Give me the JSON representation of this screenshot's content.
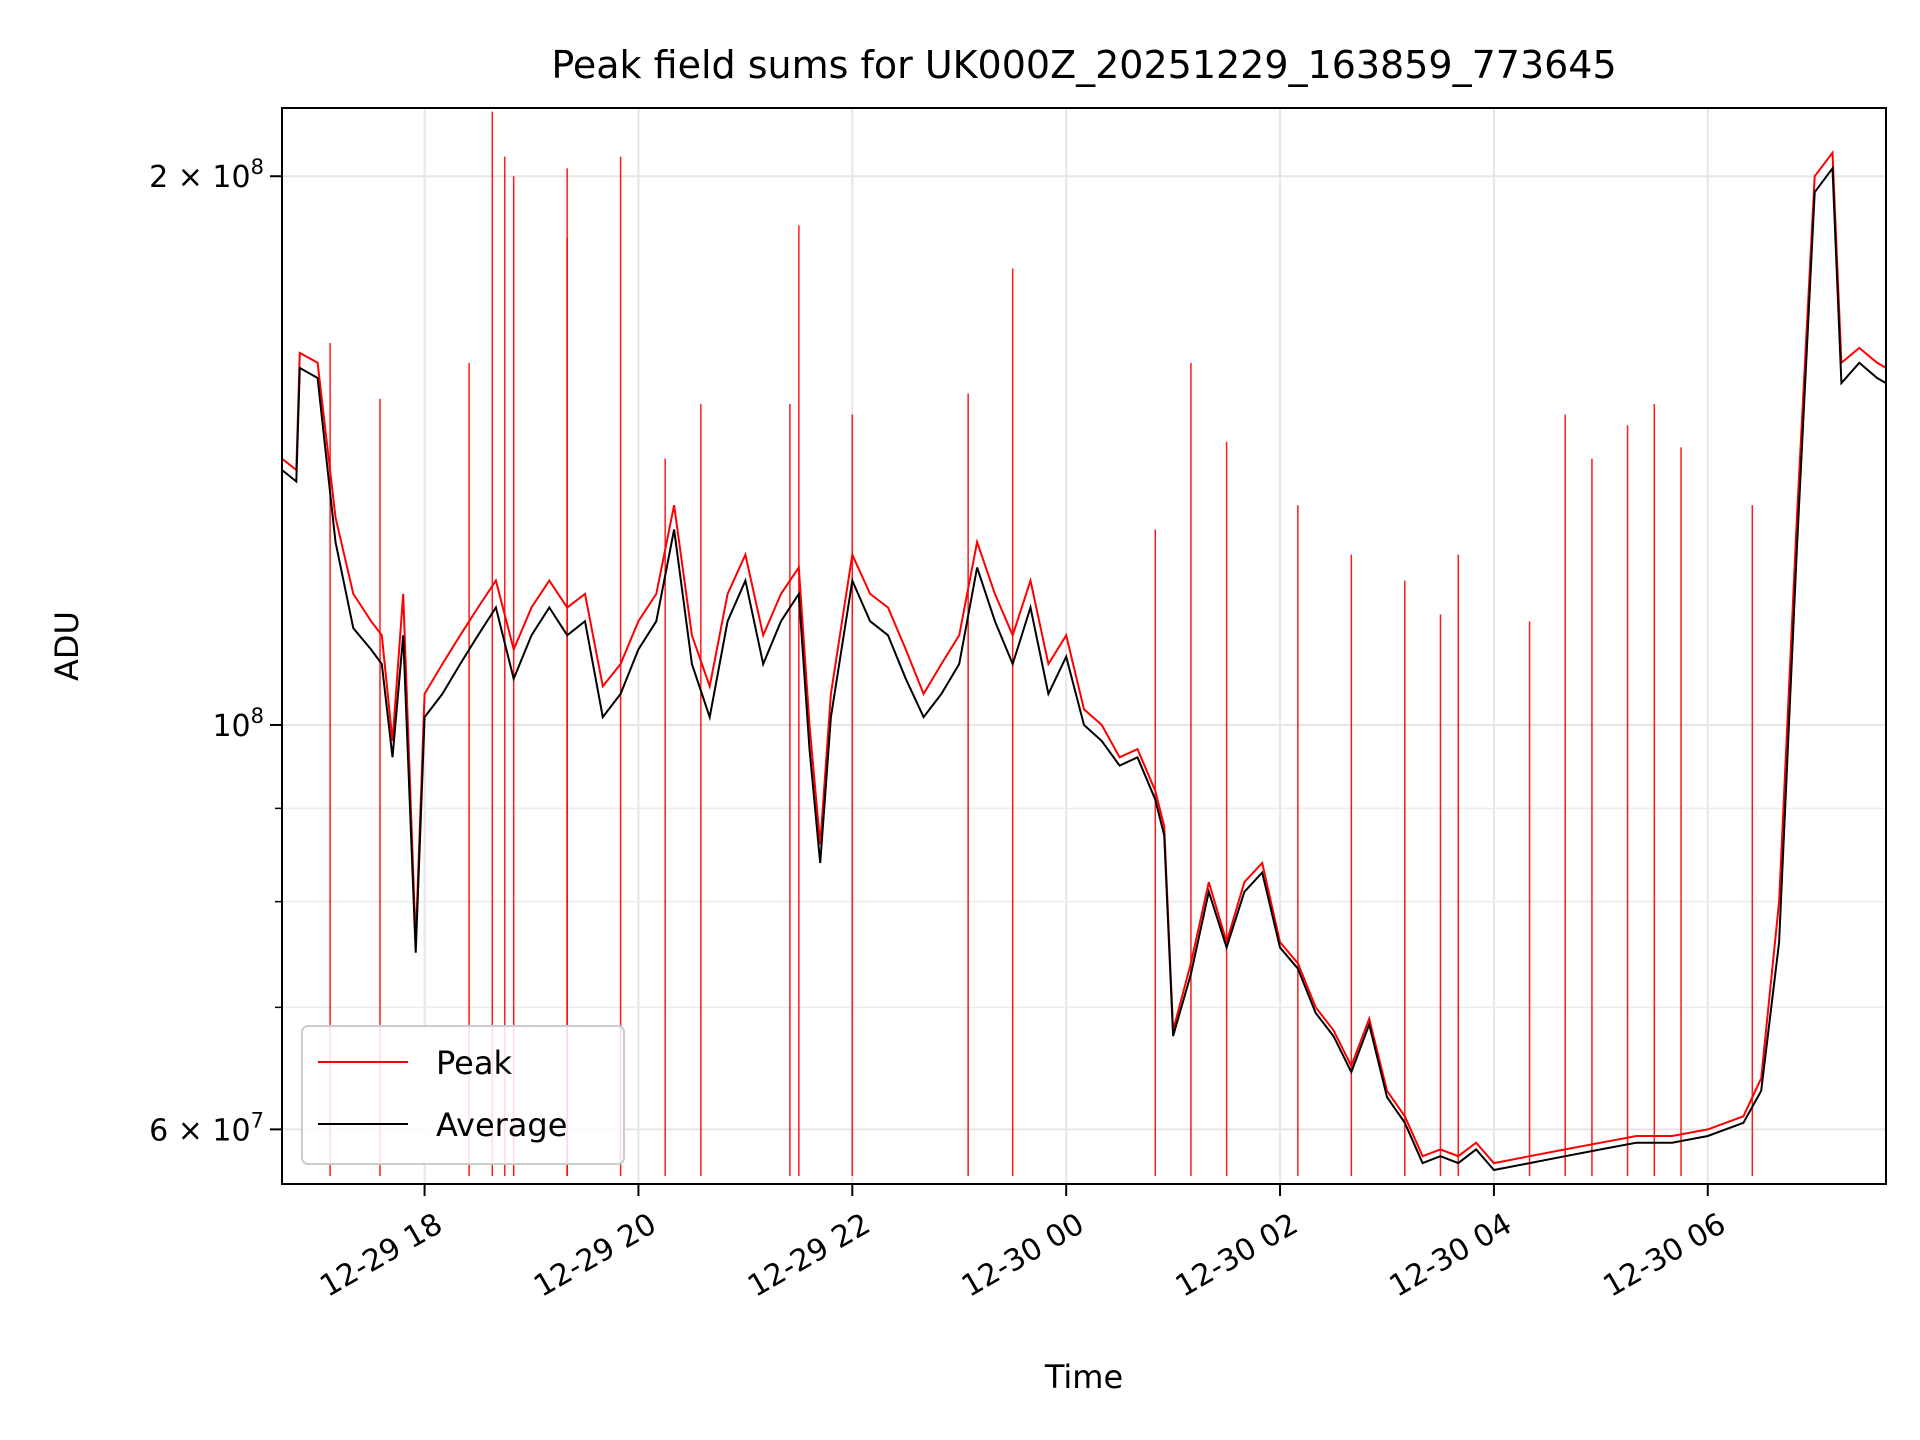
{
  "chart_data": {
    "type": "line",
    "title": "Peak field sums for UK000Z_20251229_163859_773645",
    "xlabel": "Time",
    "ylabel": "ADU",
    "x_scale": "time",
    "y_scale": "log",
    "xlim": [
      "2025-12-29 16:40",
      "2025-12-30 07:40"
    ],
    "ylim": [
      56000000,
      218000000
    ],
    "grid": true,
    "legend_position": "lower-left",
    "x_ticks": [
      {
        "t": "2025-12-29 18:00",
        "label": "12-29 18"
      },
      {
        "t": "2025-12-29 20:00",
        "label": "12-29 20"
      },
      {
        "t": "2025-12-29 22:00",
        "label": "12-29 22"
      },
      {
        "t": "2025-12-30 00:00",
        "label": "12-30 00"
      },
      {
        "t": "2025-12-30 02:00",
        "label": "12-30 02"
      },
      {
        "t": "2025-12-30 04:00",
        "label": "12-30 04"
      },
      {
        "t": "2025-12-30 06:00",
        "label": "12-30 06"
      }
    ],
    "y_major_ticks": [
      {
        "v": 100000000,
        "base": "10",
        "exp": "8"
      },
      {
        "v": 60000000,
        "base": "6 × 10",
        "exp": "7"
      },
      {
        "v": 200000000,
        "base": "2 × 10",
        "exp": "8"
      }
    ],
    "y_minor_ticks": [
      70000000,
      80000000,
      90000000
    ],
    "series": [
      {
        "name": "Peak",
        "color": "#ff0000",
        "points": [
          [
            "2025-12-29 16:40",
            140000000
          ],
          [
            "2025-12-29 16:48",
            138000000
          ],
          [
            "2025-12-29 16:50",
            160000000
          ],
          [
            "2025-12-29 17:00",
            158000000
          ],
          [
            "2025-12-29 17:10",
            130000000
          ],
          [
            "2025-12-29 17:20",
            118000000
          ],
          [
            "2025-12-29 17:30",
            114000000
          ],
          [
            "2025-12-29 17:36",
            112000000
          ],
          [
            "2025-12-29 17:42",
            98000000
          ],
          [
            "2025-12-29 17:48",
            118000000
          ],
          [
            "2025-12-29 17:55",
            76000000
          ],
          [
            "2025-12-29 18:00",
            104000000
          ],
          [
            "2025-12-29 18:10",
            108000000
          ],
          [
            "2025-12-29 18:20",
            112000000
          ],
          [
            "2025-12-29 18:30",
            116000000
          ],
          [
            "2025-12-29 18:40",
            120000000
          ],
          [
            "2025-12-29 18:50",
            110000000
          ],
          [
            "2025-12-29 19:00",
            116000000
          ],
          [
            "2025-12-29 19:10",
            120000000
          ],
          [
            "2025-12-29 19:20",
            116000000
          ],
          [
            "2025-12-29 19:30",
            118000000
          ],
          [
            "2025-12-29 19:40",
            105000000
          ],
          [
            "2025-12-29 19:50",
            108000000
          ],
          [
            "2025-12-29 20:00",
            114000000
          ],
          [
            "2025-12-29 20:10",
            118000000
          ],
          [
            "2025-12-29 20:20",
            132000000
          ],
          [
            "2025-12-29 20:30",
            112000000
          ],
          [
            "2025-12-29 20:40",
            105000000
          ],
          [
            "2025-12-29 20:50",
            118000000
          ],
          [
            "2025-12-29 21:00",
            124000000
          ],
          [
            "2025-12-29 21:10",
            112000000
          ],
          [
            "2025-12-29 21:20",
            118000000
          ],
          [
            "2025-12-29 21:30",
            122000000
          ],
          [
            "2025-12-29 21:36",
            100000000
          ],
          [
            "2025-12-29 21:42",
            86000000
          ],
          [
            "2025-12-29 21:48",
            104000000
          ],
          [
            "2025-12-29 22:00",
            124000000
          ],
          [
            "2025-12-29 22:10",
            118000000
          ],
          [
            "2025-12-29 22:20",
            116000000
          ],
          [
            "2025-12-29 22:30",
            110000000
          ],
          [
            "2025-12-29 22:40",
            104000000
          ],
          [
            "2025-12-29 22:50",
            108000000
          ],
          [
            "2025-12-29 23:00",
            112000000
          ],
          [
            "2025-12-29 23:10",
            126000000
          ],
          [
            "2025-12-29 23:20",
            118000000
          ],
          [
            "2025-12-29 23:30",
            112000000
          ],
          [
            "2025-12-29 23:40",
            120000000
          ],
          [
            "2025-12-29 23:50",
            108000000
          ],
          [
            "2025-12-30 00:00",
            112000000
          ],
          [
            "2025-12-30 00:10",
            102000000
          ],
          [
            "2025-12-30 00:20",
            100000000
          ],
          [
            "2025-12-30 00:30",
            96000000
          ],
          [
            "2025-12-30 00:40",
            97000000
          ],
          [
            "2025-12-30 00:50",
            92000000
          ],
          [
            "2025-12-30 00:55",
            88000000
          ],
          [
            "2025-12-30 01:00",
            68000000
          ],
          [
            "2025-12-30 01:10",
            74000000
          ],
          [
            "2025-12-30 01:20",
            82000000
          ],
          [
            "2025-12-30 01:30",
            76000000
          ],
          [
            "2025-12-30 01:40",
            82000000
          ],
          [
            "2025-12-30 01:50",
            84000000
          ],
          [
            "2025-12-30 02:00",
            76000000
          ],
          [
            "2025-12-30 02:10",
            74000000
          ],
          [
            "2025-12-30 02:20",
            70000000
          ],
          [
            "2025-12-30 02:30",
            68000000
          ],
          [
            "2025-12-30 02:40",
            65000000
          ],
          [
            "2025-12-30 02:50",
            69000000
          ],
          [
            "2025-12-30 03:00",
            63000000
          ],
          [
            "2025-12-30 03:10",
            61000000
          ],
          [
            "2025-12-30 03:20",
            58000000
          ],
          [
            "2025-12-30 03:30",
            58500000
          ],
          [
            "2025-12-30 03:40",
            58000000
          ],
          [
            "2025-12-30 03:50",
            59000000
          ],
          [
            "2025-12-30 04:00",
            57500000
          ],
          [
            "2025-12-30 04:20",
            58000000
          ],
          [
            "2025-12-30 04:40",
            58500000
          ],
          [
            "2025-12-30 05:00",
            59000000
          ],
          [
            "2025-12-30 05:20",
            59500000
          ],
          [
            "2025-12-30 05:40",
            59500000
          ],
          [
            "2025-12-30 06:00",
            60000000
          ],
          [
            "2025-12-30 06:20",
            61000000
          ],
          [
            "2025-12-30 06:30",
            64000000
          ],
          [
            "2025-12-30 06:40",
            80000000
          ],
          [
            "2025-12-30 06:50",
            130000000
          ],
          [
            "2025-12-30 07:00",
            200000000
          ],
          [
            "2025-12-30 07:10",
            206000000
          ],
          [
            "2025-12-30 07:15",
            158000000
          ],
          [
            "2025-12-30 07:25",
            161000000
          ],
          [
            "2025-12-30 07:35",
            158000000
          ],
          [
            "2025-12-30 07:40",
            157000000
          ]
        ],
        "spikes": [
          [
            "2025-12-29 17:07",
            162000000
          ],
          [
            "2025-12-29 17:35",
            151000000
          ],
          [
            "2025-12-29 18:25",
            158000000
          ],
          [
            "2025-12-29 18:38",
            217000000
          ],
          [
            "2025-12-29 18:45",
            205000000
          ],
          [
            "2025-12-29 18:50",
            200000000
          ],
          [
            "2025-12-29 19:20",
            202000000
          ],
          [
            "2025-12-29 19:20",
            185000000
          ],
          [
            "2025-12-29 19:50",
            205000000
          ],
          [
            "2025-12-29 20:15",
            140000000
          ],
          [
            "2025-12-29 20:35",
            150000000
          ],
          [
            "2025-12-29 21:25",
            150000000
          ],
          [
            "2025-12-29 21:30",
            188000000
          ],
          [
            "2025-12-29 22:00",
            148000000
          ],
          [
            "2025-12-29 23:05",
            152000000
          ],
          [
            "2025-12-29 23:30",
            178000000
          ],
          [
            "2025-12-30 00:50",
            128000000
          ],
          [
            "2025-12-30 01:10",
            158000000
          ],
          [
            "2025-12-30 01:30",
            143000000
          ],
          [
            "2025-12-30 02:10",
            132000000
          ],
          [
            "2025-12-30 02:40",
            124000000
          ],
          [
            "2025-12-30 03:10",
            120000000
          ],
          [
            "2025-12-30 03:30",
            115000000
          ],
          [
            "2025-12-30 03:40",
            124000000
          ],
          [
            "2025-12-30 04:20",
            114000000
          ],
          [
            "2025-12-30 04:40",
            148000000
          ],
          [
            "2025-12-30 04:55",
            140000000
          ],
          [
            "2025-12-30 05:15",
            146000000
          ],
          [
            "2025-12-30 05:30",
            150000000
          ],
          [
            "2025-12-30 05:45",
            142000000
          ],
          [
            "2025-12-30 06:25",
            132000000
          ]
        ]
      },
      {
        "name": "Average",
        "color": "#000000",
        "points": [
          [
            "2025-12-29 16:40",
            138000000
          ],
          [
            "2025-12-29 16:48",
            136000000
          ],
          [
            "2025-12-29 16:50",
            157000000
          ],
          [
            "2025-12-29 17:00",
            155000000
          ],
          [
            "2025-12-29 17:10",
            126000000
          ],
          [
            "2025-12-29 17:20",
            113000000
          ],
          [
            "2025-12-29 17:30",
            110000000
          ],
          [
            "2025-12-29 17:36",
            108000000
          ],
          [
            "2025-12-29 17:42",
            96000000
          ],
          [
            "2025-12-29 17:48",
            112000000
          ],
          [
            "2025-12-29 17:55",
            75000000
          ],
          [
            "2025-12-29 18:00",
            101000000
          ],
          [
            "2025-12-29 18:10",
            104000000
          ],
          [
            "2025-12-29 18:20",
            108000000
          ],
          [
            "2025-12-29 18:30",
            112000000
          ],
          [
            "2025-12-29 18:40",
            116000000
          ],
          [
            "2025-12-29 18:50",
            106000000
          ],
          [
            "2025-12-29 19:00",
            112000000
          ],
          [
            "2025-12-29 19:10",
            116000000
          ],
          [
            "2025-12-29 19:20",
            112000000
          ],
          [
            "2025-12-29 19:30",
            114000000
          ],
          [
            "2025-12-29 19:40",
            101000000
          ],
          [
            "2025-12-29 19:50",
            104000000
          ],
          [
            "2025-12-29 20:00",
            110000000
          ],
          [
            "2025-12-29 20:10",
            114000000
          ],
          [
            "2025-12-29 20:20",
            128000000
          ],
          [
            "2025-12-29 20:30",
            108000000
          ],
          [
            "2025-12-29 20:40",
            101000000
          ],
          [
            "2025-12-29 20:50",
            114000000
          ],
          [
            "2025-12-29 21:00",
            120000000
          ],
          [
            "2025-12-29 21:10",
            108000000
          ],
          [
            "2025-12-29 21:20",
            114000000
          ],
          [
            "2025-12-29 21:30",
            118000000
          ],
          [
            "2025-12-29 21:36",
            97000000
          ],
          [
            "2025-12-29 21:42",
            84000000
          ],
          [
            "2025-12-29 21:48",
            101000000
          ],
          [
            "2025-12-29 22:00",
            120000000
          ],
          [
            "2025-12-29 22:10",
            114000000
          ],
          [
            "2025-12-29 22:20",
            112000000
          ],
          [
            "2025-12-29 22:30",
            106000000
          ],
          [
            "2025-12-29 22:40",
            101000000
          ],
          [
            "2025-12-29 22:50",
            104000000
          ],
          [
            "2025-12-29 23:00",
            108000000
          ],
          [
            "2025-12-29 23:10",
            122000000
          ],
          [
            "2025-12-29 23:20",
            114000000
          ],
          [
            "2025-12-29 23:30",
            108000000
          ],
          [
            "2025-12-29 23:40",
            116000000
          ],
          [
            "2025-12-29 23:50",
            104000000
          ],
          [
            "2025-12-30 00:00",
            109000000
          ],
          [
            "2025-12-30 00:10",
            100000000
          ],
          [
            "2025-12-30 00:20",
            98000000
          ],
          [
            "2025-12-30 00:30",
            95000000
          ],
          [
            "2025-12-30 00:40",
            96000000
          ],
          [
            "2025-12-30 00:50",
            91000000
          ],
          [
            "2025-12-30 00:55",
            87000000
          ],
          [
            "2025-12-30 01:00",
            67500000
          ],
          [
            "2025-12-30 01:10",
            73000000
          ],
          [
            "2025-12-30 01:20",
            81000000
          ],
          [
            "2025-12-30 01:30",
            75500000
          ],
          [
            "2025-12-30 01:40",
            81000000
          ],
          [
            "2025-12-30 01:50",
            83000000
          ],
          [
            "2025-12-30 02:00",
            75500000
          ],
          [
            "2025-12-30 02:10",
            73500000
          ],
          [
            "2025-12-30 02:20",
            69500000
          ],
          [
            "2025-12-30 02:30",
            67500000
          ],
          [
            "2025-12-30 02:40",
            64500000
          ],
          [
            "2025-12-30 02:50",
            68500000
          ],
          [
            "2025-12-30 03:00",
            62500000
          ],
          [
            "2025-12-30 03:10",
            60500000
          ],
          [
            "2025-12-30 03:20",
            57500000
          ],
          [
            "2025-12-30 03:30",
            58000000
          ],
          [
            "2025-12-30 03:40",
            57500000
          ],
          [
            "2025-12-30 03:50",
            58500000
          ],
          [
            "2025-12-30 04:00",
            57000000
          ],
          [
            "2025-12-30 04:20",
            57500000
          ],
          [
            "2025-12-30 04:40",
            58000000
          ],
          [
            "2025-12-30 05:00",
            58500000
          ],
          [
            "2025-12-30 05:20",
            59000000
          ],
          [
            "2025-12-30 05:40",
            59000000
          ],
          [
            "2025-12-30 06:00",
            59500000
          ],
          [
            "2025-12-30 06:20",
            60500000
          ],
          [
            "2025-12-30 06:30",
            63000000
          ],
          [
            "2025-12-30 06:40",
            76000000
          ],
          [
            "2025-12-30 06:50",
            125000000
          ],
          [
            "2025-12-30 07:00",
            196000000
          ],
          [
            "2025-12-30 07:10",
            202000000
          ],
          [
            "2025-12-30 07:15",
            154000000
          ],
          [
            "2025-12-30 07:25",
            158000000
          ],
          [
            "2025-12-30 07:35",
            155000000
          ],
          [
            "2025-12-30 07:40",
            154000000
          ]
        ]
      }
    ]
  }
}
